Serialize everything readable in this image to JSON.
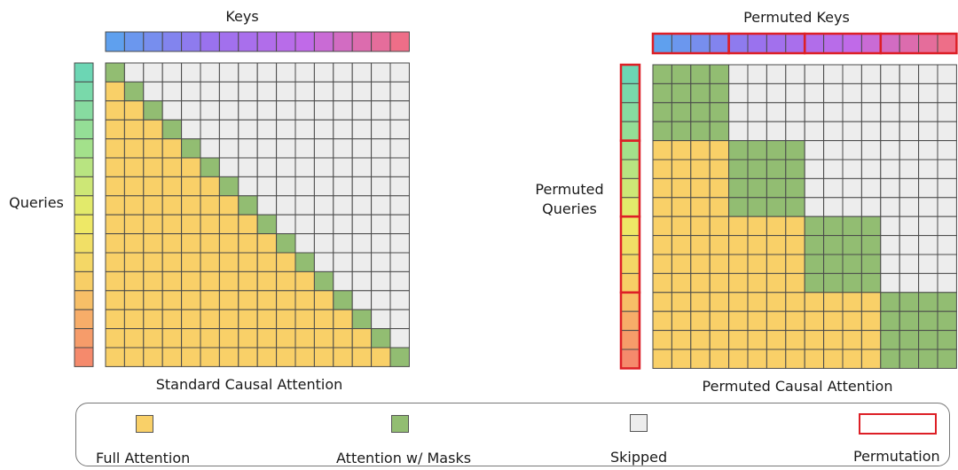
{
  "left_panel": {
    "title": "Standard Causal Attention",
    "keys_label": "Keys",
    "queries_label": "Queries"
  },
  "right_panel": {
    "title": "Permuted Causal Attention",
    "keys_label": "Permuted Keys",
    "queries_label_line1": "Permuted",
    "queries_label_line2": "Queries"
  },
  "grid": {
    "size": 16,
    "block_size": 4
  },
  "legend": {
    "full_attention": "Full Attention",
    "attention_masks": "Attention w/ Masks",
    "skipped": "Skipped",
    "permutation": "Permutation"
  },
  "colors": {
    "full": "#f9d068",
    "mask": "#92bd72",
    "skipped": "#ededed",
    "permutation_border": "#dd1f26",
    "grid_line": "#4a4a4a",
    "key_gradient": [
      "#5fa0ee",
      "#9a72ee",
      "#c06ae8",
      "#ee6e88"
    ],
    "query_gradient": [
      "#6cd6b4",
      "#9ee08e",
      "#ecec66",
      "#f8cc66",
      "#f58a6c"
    ]
  }
}
